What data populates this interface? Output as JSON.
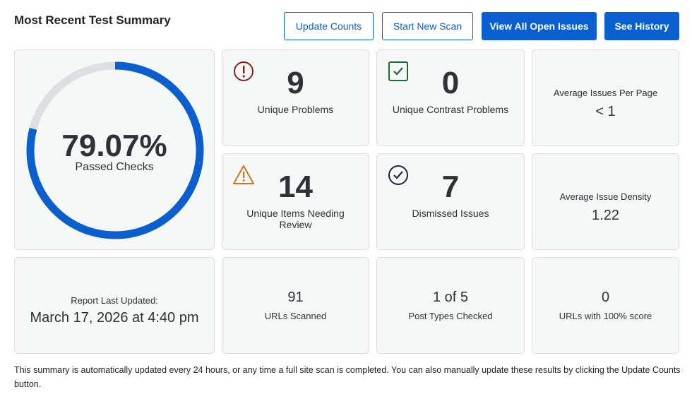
{
  "header": {
    "title": "Most Recent Test Summary",
    "buttons": {
      "update_counts": "Update Counts",
      "start_scan": "Start New Scan",
      "view_open_issues": "View All Open Issues",
      "see_history": "See History"
    }
  },
  "passed": {
    "percent_label": "79.07%",
    "percent_value": 79.07,
    "label": "Passed Checks",
    "ring_color": "#0a5fd0",
    "track_color": "#dcdfe3"
  },
  "stats": {
    "unique_problems": {
      "value": "9",
      "label": "Unique Problems",
      "icon": "exclamation-circle-icon",
      "color": "#8a1f1f"
    },
    "contrast_problems": {
      "value": "0",
      "label": "Unique Contrast Problems",
      "icon": "checkbox-check-icon",
      "color": "#1e6b2c"
    },
    "needing_review": {
      "value": "14",
      "label": "Unique Items Needing Review",
      "icon": "warning-triangle-icon",
      "color": "#c7771a"
    },
    "dismissed": {
      "value": "7",
      "label": "Dismissed Issues",
      "icon": "check-circle-icon",
      "color": "#1d2a36"
    }
  },
  "averages": {
    "issues_per_page": {
      "label": "Average Issues Per Page",
      "value": "< 1"
    },
    "issue_density": {
      "label": "Average Issue Density",
      "value": "1.22"
    }
  },
  "bottom": {
    "report_updated": {
      "label": "Report Last Updated:",
      "value": "March 17, 2026 at 4:40 pm"
    },
    "urls_scanned": {
      "value": "91",
      "label": "URLs Scanned"
    },
    "post_types": {
      "value": "1 of 5",
      "label": "Post Types Checked"
    },
    "perfect_urls": {
      "value": "0",
      "label": "URLs with 100% score"
    }
  },
  "footer_text": "This summary is automatically updated every 24 hours, or any time a full site scan is completed. You can also manually update these results by clicking the Update Counts button."
}
